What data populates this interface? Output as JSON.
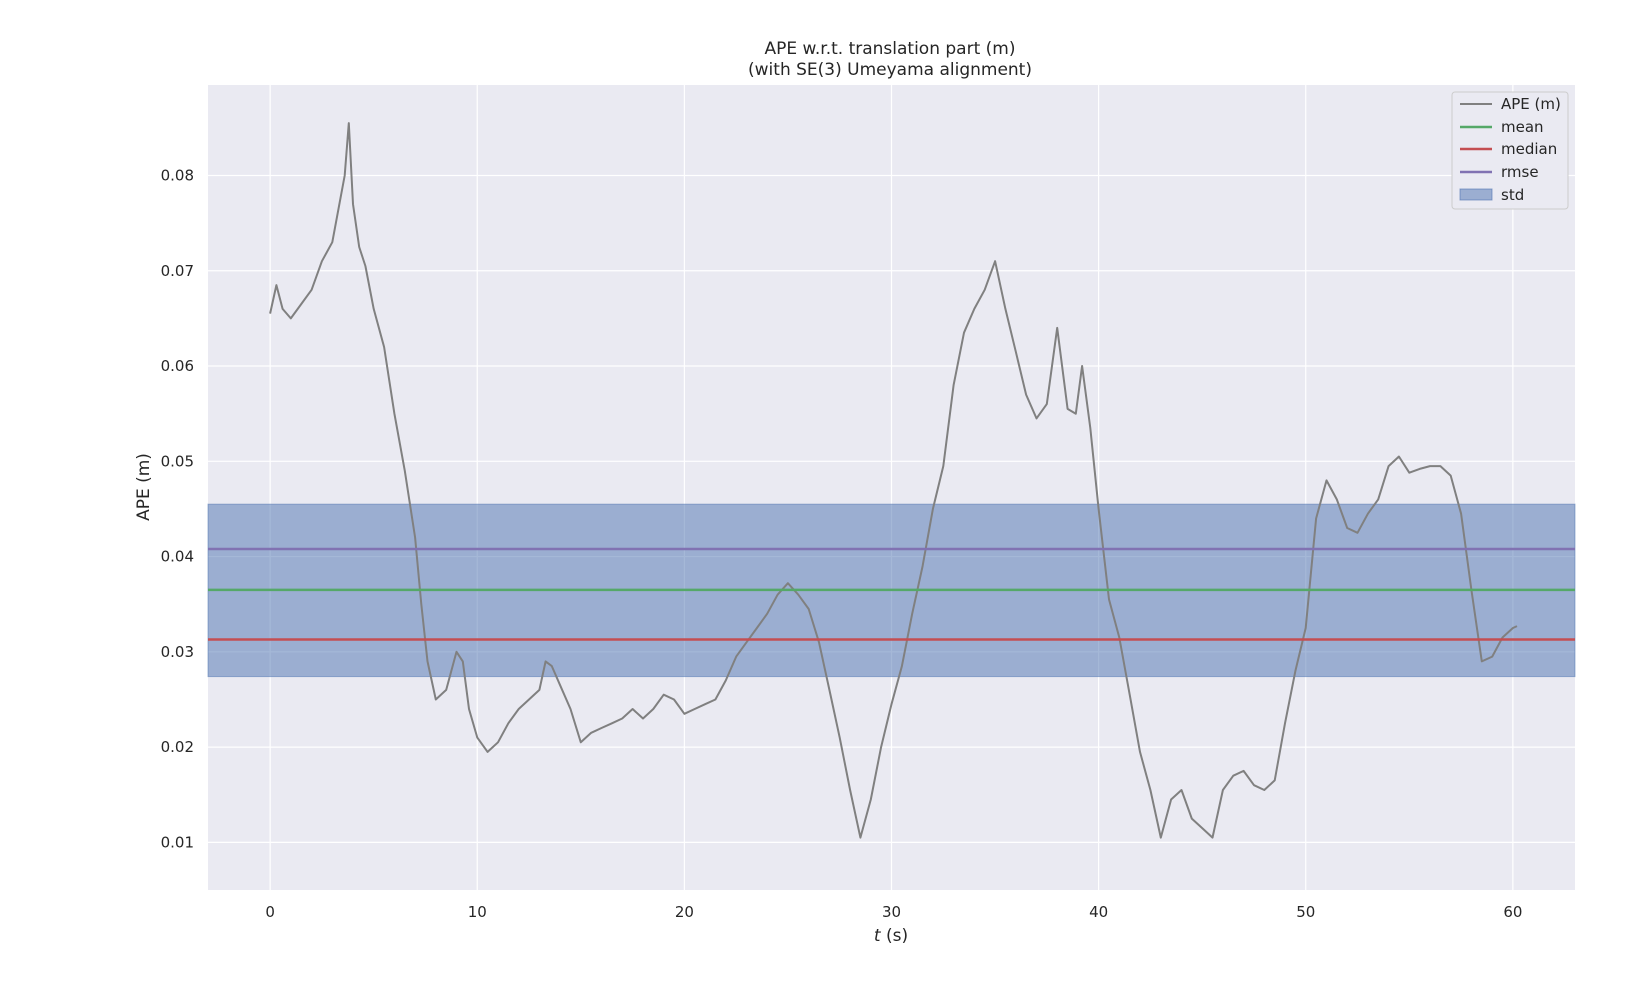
{
  "chart_data": {
    "type": "line",
    "title": "APE w.r.t. translation part (m)",
    "subtitle": "(with SE(3) Umeyama alignment)",
    "xlabel_italic": "t",
    "xlabel_unit": " (s)",
    "ylabel": "APE (m)",
    "xlim": [
      -3,
      63
    ],
    "ylim": [
      0.005,
      0.0895
    ],
    "xticks": [
      0,
      10,
      20,
      30,
      40,
      50,
      60
    ],
    "yticks": [
      0.01,
      0.02,
      0.03,
      0.04,
      0.05,
      0.06,
      0.07,
      0.08
    ],
    "grid": true,
    "legend_position": "top-right",
    "legend": [
      "APE (m)",
      "mean",
      "median",
      "rmse",
      "std"
    ],
    "stats": {
      "mean": 0.0365,
      "median": 0.0313,
      "rmse": 0.0408,
      "std_low": 0.0274,
      "std_high": 0.0455
    },
    "series": [
      {
        "name": "APE (m)",
        "color": "#808080",
        "x": [
          0,
          0.3,
          0.6,
          1.0,
          1.5,
          2.0,
          2.5,
          3.0,
          3.3,
          3.6,
          3.8,
          4.0,
          4.3,
          4.6,
          5.0,
          5.5,
          6.0,
          6.5,
          7.0,
          7.3,
          7.6,
          8.0,
          8.5,
          9.0,
          9.3,
          9.6,
          10.0,
          10.5,
          11.0,
          11.5,
          12.0,
          12.5,
          13.0,
          13.3,
          13.6,
          14.0,
          14.5,
          15.0,
          15.5,
          16.0,
          16.5,
          17.0,
          17.5,
          18.0,
          18.5,
          19.0,
          19.5,
          20.0,
          20.5,
          21.0,
          21.5,
          22.0,
          22.5,
          23.0,
          23.5,
          24.0,
          24.5,
          25.0,
          25.5,
          26.0,
          26.5,
          27.0,
          27.5,
          28.0,
          28.5,
          29.0,
          29.5,
          30.0,
          30.5,
          31.0,
          31.5,
          32.0,
          32.5,
          33.0,
          33.5,
          34.0,
          34.5,
          35.0,
          35.5,
          36.0,
          36.5,
          37.0,
          37.5,
          38.0,
          38.5,
          38.9,
          39.2,
          39.6,
          40.0,
          40.5,
          41.0,
          41.5,
          42.0,
          42.5,
          43.0,
          43.5,
          44.0,
          44.5,
          45.0,
          45.5,
          46.0,
          46.5,
          47.0,
          47.5,
          48.0,
          48.5,
          49.0,
          49.5,
          50.0,
          50.5,
          51.0,
          51.5,
          52.0,
          52.5,
          53.0,
          53.5,
          54.0,
          54.5,
          55.0,
          55.5,
          56.0,
          56.5,
          57.0,
          57.5,
          58.0,
          58.5,
          59.0,
          59.5,
          60.0,
          60.2
        ],
        "y": [
          0.0655,
          0.0685,
          0.066,
          0.065,
          0.0665,
          0.068,
          0.071,
          0.073,
          0.0765,
          0.08,
          0.0855,
          0.077,
          0.0725,
          0.0705,
          0.066,
          0.062,
          0.055,
          0.049,
          0.042,
          0.035,
          0.029,
          0.025,
          0.026,
          0.03,
          0.029,
          0.024,
          0.021,
          0.0195,
          0.0205,
          0.0225,
          0.024,
          0.025,
          0.026,
          0.029,
          0.0285,
          0.0265,
          0.024,
          0.0205,
          0.0215,
          0.022,
          0.0225,
          0.023,
          0.024,
          0.023,
          0.024,
          0.0255,
          0.025,
          0.0235,
          0.024,
          0.0245,
          0.025,
          0.027,
          0.0295,
          0.031,
          0.0325,
          0.034,
          0.036,
          0.0372,
          0.036,
          0.0345,
          0.031,
          0.026,
          0.021,
          0.0155,
          0.0105,
          0.0145,
          0.02,
          0.0245,
          0.0285,
          0.034,
          0.039,
          0.045,
          0.0495,
          0.058,
          0.0635,
          0.066,
          0.068,
          0.071,
          0.066,
          0.0615,
          0.057,
          0.0545,
          0.056,
          0.064,
          0.0555,
          0.055,
          0.06,
          0.0535,
          0.045,
          0.0355,
          0.0315,
          0.0255,
          0.0195,
          0.0155,
          0.0105,
          0.0145,
          0.0155,
          0.0125,
          0.0115,
          0.0105,
          0.0155,
          0.017,
          0.0175,
          0.016,
          0.0155,
          0.0165,
          0.0225,
          0.028,
          0.0325,
          0.044,
          0.048,
          0.046,
          0.043,
          0.0425,
          0.0445,
          0.046,
          0.0495,
          0.0505,
          0.0488,
          0.0492,
          0.0495,
          0.0495,
          0.0485,
          0.0445,
          0.0365,
          0.029,
          0.0295,
          0.0315,
          0.0325,
          0.0327
        ]
      }
    ]
  }
}
